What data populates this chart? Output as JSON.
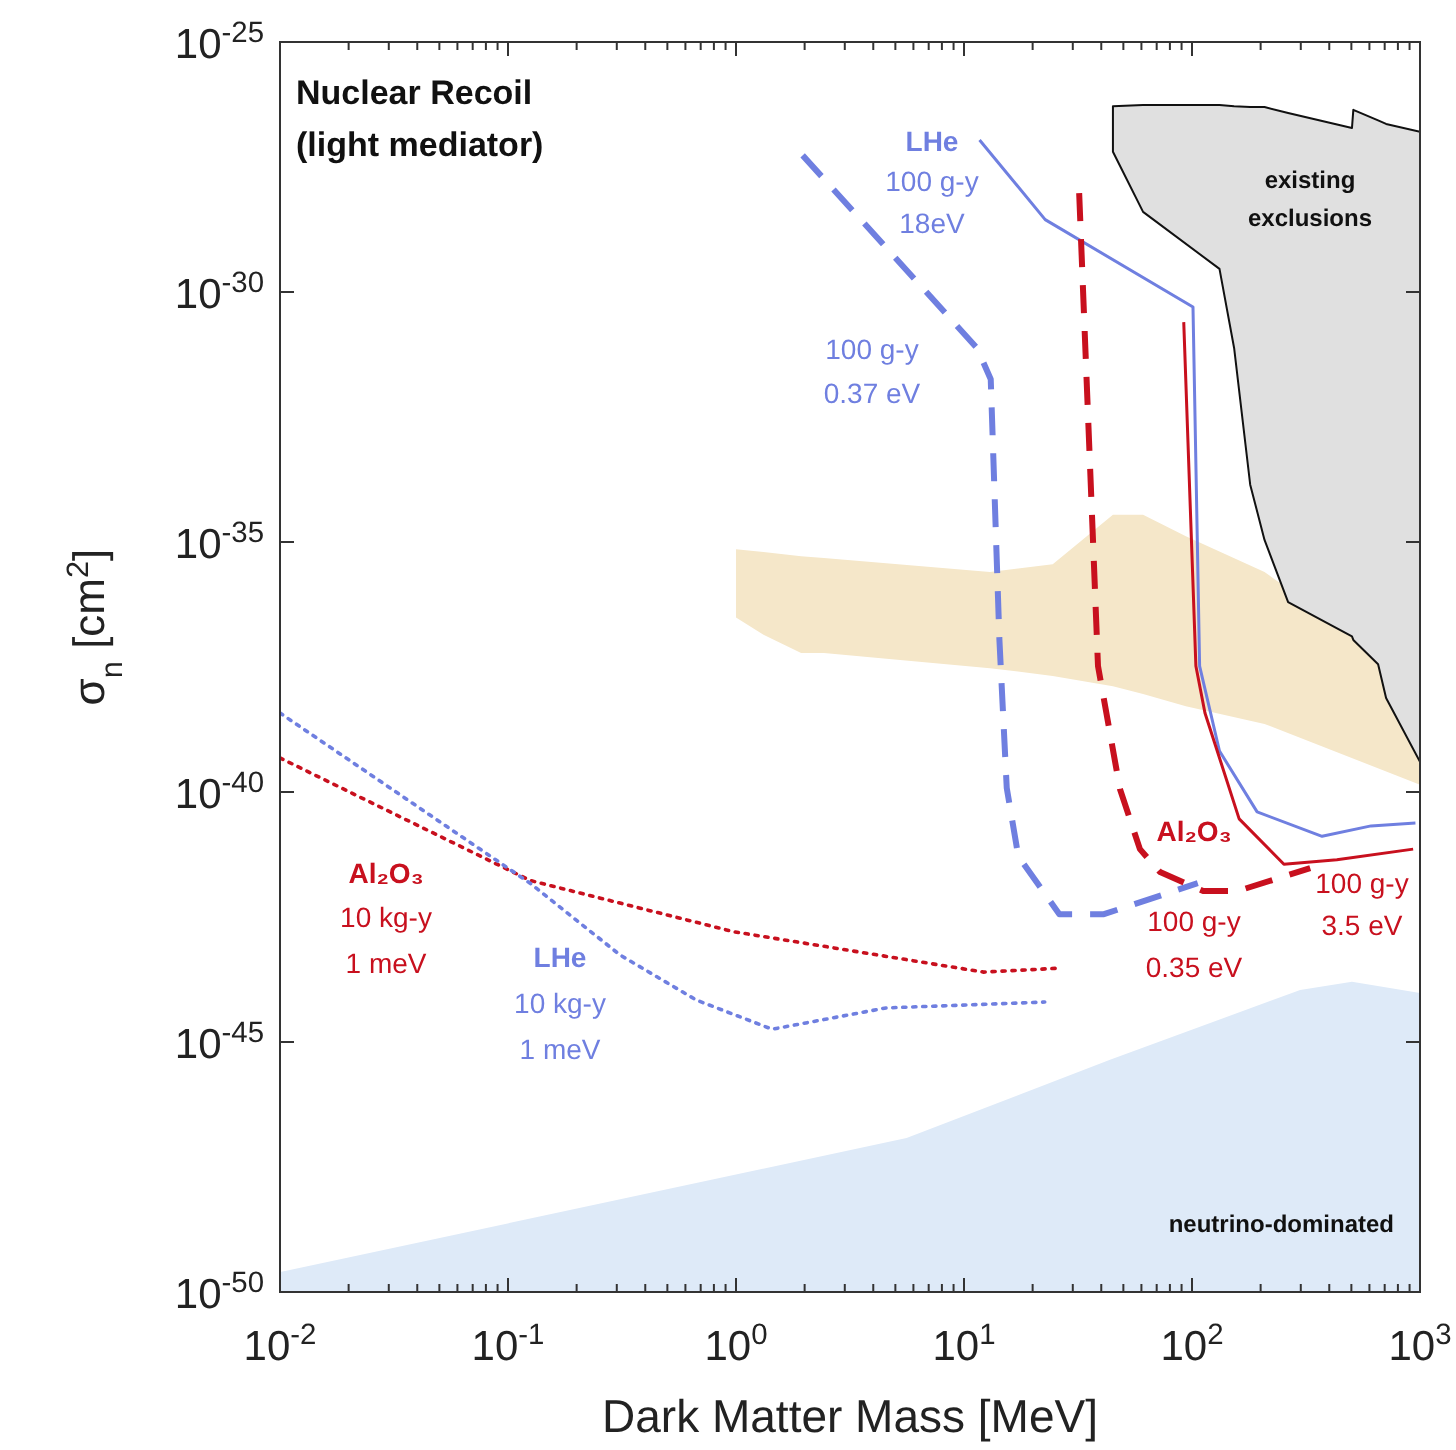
{
  "chart_data": {
    "type": "line",
    "title": "Nuclear Recoil\n(light mediator)",
    "xlabel": "Dark Matter Mass [MeV]",
    "ylabel": "σ$_{n}$ [cm$^{2}$]",
    "log": "xy",
    "grid": false,
    "xlim": [
      0.01,
      1000
    ],
    "ylim": [
      1e-50,
      1e-25
    ],
    "xticks": [
      {
        "value": 0.01,
        "label": "10$^{-2}$"
      },
      {
        "value": 0.02,
        "label": null
      },
      {
        "value": 0.03,
        "label": null
      },
      {
        "value": 0.04,
        "label": null
      },
      {
        "value": 0.05,
        "label": null
      },
      {
        "value": 0.06,
        "label": null
      },
      {
        "value": 0.07,
        "label": null
      },
      {
        "value": 0.08,
        "label": null
      },
      {
        "value": 0.09,
        "label": null
      },
      {
        "value": 0.1,
        "label": "10$^{-1}$"
      },
      {
        "value": 0.2,
        "label": null
      },
      {
        "value": 0.3,
        "label": null
      },
      {
        "value": 0.4,
        "label": null
      },
      {
        "value": 0.5,
        "label": null
      },
      {
        "value": 0.6,
        "label": null
      },
      {
        "value": 0.7,
        "label": null
      },
      {
        "value": 0.8,
        "label": null
      },
      {
        "value": 0.9,
        "label": null
      },
      {
        "value": 1,
        "label": "10$^{0}$"
      },
      {
        "value": 2,
        "label": null
      },
      {
        "value": 3,
        "label": null
      },
      {
        "value": 4,
        "label": null
      },
      {
        "value": 5,
        "label": null
      },
      {
        "value": 6,
        "label": null
      },
      {
        "value": 7,
        "label": null
      },
      {
        "value": 8,
        "label": null
      },
      {
        "value": 9,
        "label": null
      },
      {
        "value": 10,
        "label": "10$^{1}$"
      },
      {
        "value": 20,
        "label": null
      },
      {
        "value": 30,
        "label": null
      },
      {
        "value": 40,
        "label": null
      },
      {
        "value": 50,
        "label": null
      },
      {
        "value": 60,
        "label": null
      },
      {
        "value": 70,
        "label": null
      },
      {
        "value": 80,
        "label": null
      },
      {
        "value": 90,
        "label": null
      },
      {
        "value": 100,
        "label": "10$^{2}$"
      },
      {
        "value": 200,
        "label": null
      },
      {
        "value": 300,
        "label": null
      },
      {
        "value": 400,
        "label": null
      },
      {
        "value": 500,
        "label": null
      },
      {
        "value": 600,
        "label": null
      },
      {
        "value": 700,
        "label": null
      },
      {
        "value": 800,
        "label": null
      },
      {
        "value": 900,
        "label": null
      },
      {
        "value": 1000,
        "label": "10$^{3}$"
      }
    ],
    "yticks": [
      {
        "value": 1e-50,
        "label": "10$^{-50}$"
      },
      {
        "value": 1e-45,
        "label": "10$^{-45}$"
      },
      {
        "value": 1e-40,
        "label": "10$^{-40}$"
      },
      {
        "value": 1e-35,
        "label": "10$^{-35}$"
      },
      {
        "value": 1e-30,
        "label": "10$^{-30}$"
      },
      {
        "value": 1e-25,
        "label": "10$^{-25}$"
      }
    ],
    "series": [
      {
        "type": "area",
        "name": "neutrino-dominated",
        "color": "#deeaf8",
        "x": [
          0.01,
          5.6,
          43.7,
          298,
          503,
          1000,
          1000,
          0.01
        ],
        "values": [
          2.5e-50,
          1.2e-47,
          4.4e-46,
          1.1e-44,
          1.6e-44,
          9.5e-45,
          1e-50,
          1e-50
        ]
      },
      {
        "type": "area",
        "color": "#f5e7c9",
        "x": [
          1.0,
          1.32,
          1.93,
          2.43,
          13,
          24.5,
          45,
          61,
          94,
          208,
          1000,
          1000,
          208,
          94,
          61,
          45,
          24.5,
          13,
          2.43,
          1.93,
          1.32,
          1.0
        ],
        "values": [
          7.2e-36,
          6.3e-36,
          5.2e-36,
          4.8e-36,
          2.5e-36,
          3.6e-36,
          3.5e-35,
          3.5e-35,
          1.3e-35,
          2.5e-36,
          1.7e-38,
          1.4e-40,
          2.3e-39,
          5.2e-39,
          9.1e-39,
          1.3e-38,
          2.1e-38,
          3e-38,
          6e-38,
          6e-38,
          1.4e-37,
          3.1e-37
        ]
      },
      {
        "type": "area",
        "name": "existing exclusions",
        "color": "#e0e0e0",
        "x": [
          45,
          61,
          132,
          153,
          180,
          208,
          264,
          503,
          510,
          655,
          710,
          1000,
          1000,
          710,
          655,
          510,
          503,
          264,
          208,
          180,
          153,
          132,
          61,
          45
        ],
        "values": [
          5.2e-27,
          5.5e-27,
          5.5e-27,
          5.2e-27,
          5e-27,
          5e-27,
          3.8e-27,
          1.9e-27,
          4.4e-27,
          2.7e-27,
          2.3e-27,
          1.6e-27,
          4e-40,
          7.6e-39,
          3.6e-38,
          1.1e-37,
          1.3e-37,
          6.3e-37,
          1.1e-35,
          1.4e-34,
          7.6e-32,
          2.9e-30,
          4e-29,
          6.4e-28
        ]
      },
      {
        "name": "LHe\n100 g-y\n18eV",
        "color": "#6f7fe0",
        "line_style": "solid",
        "x": [
          11.7,
          22.7,
          101,
          108,
          132,
          193,
          372,
          610,
          955
        ],
        "values": [
          1.1e-27,
          2.8e-29,
          5e-31,
          3.3e-38,
          6.6e-40,
          4e-41,
          1.3e-41,
          2.1e-41,
          2.4e-41
        ]
      },
      {
        "name": "100 g-y\n0.37 eV",
        "color": "#6f7fe0",
        "line_style": "dashed",
        "x": [
          1.96,
          11.4,
          13.1,
          14.3,
          15.4,
          17.3,
          26.2,
          41.1,
          106
        ],
        "values": [
          5.4e-28,
          7.6e-32,
          1.8e-32,
          1.1e-37,
          1.2e-40,
          5.2e-42,
          3.6e-43,
          3.6e-43,
          1.5e-42
        ]
      },
      {
        "name": "Al₂O₃\n100 g-y\n0.35 eV",
        "color": "#c8101e",
        "line_style": "dashed",
        "x": [
          32,
          38.7,
          48.3,
          59.1,
          72.4,
          112,
          159,
          330
        ],
        "values": [
          9.5e-29,
          3.3e-38,
          1.15e-40,
          7.2e-42,
          2.5e-42,
          1.05e-42,
          1.05e-42,
          3e-42
        ]
      },
      {
        "name": "100 g-y\n3.5 eV",
        "color": "#c8101e",
        "line_style": "solid",
        "x": [
          92,
          104,
          114,
          161,
          253,
          432,
          933
        ],
        "values": [
          2.5e-31,
          3.3e-38,
          3.8e-39,
          2.9e-41,
          3.6e-42,
          4.4e-42,
          7.2e-42
        ]
      },
      {
        "name": "Al₂O₃\n10 kg-y\n1 meV",
        "color": "#c8101e",
        "line_style": "dotted",
        "x": [
          0.01,
          0.125,
          0.98,
          12.2,
          26.4
        ],
        "values": [
          4.8e-40,
          1.7e-42,
          1.6e-43,
          2.5e-44,
          3e-44
        ]
      },
      {
        "name": "LHe\n10 kg-y\n1 meV",
        "color": "#6f7fe0",
        "line_style": "dotted",
        "x": [
          0.01,
          0.125,
          0.31,
          0.67,
          1.44,
          4.55,
          22.6
        ],
        "values": [
          3.8e-39,
          1.5e-42,
          5.5e-44,
          6.9e-45,
          1.8e-45,
          4.8e-45,
          6.3e-45
        ]
      }
    ]
  }
}
